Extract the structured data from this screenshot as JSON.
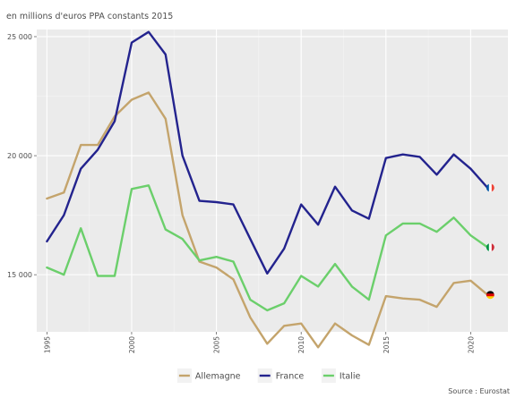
{
  "chart_data": {
    "type": "line",
    "subtitle": "en millions d'euros PPA constants 2015",
    "caption": "Source : Eurostat",
    "x": [
      1995,
      1996,
      1997,
      1998,
      1999,
      2000,
      2001,
      2002,
      2003,
      2004,
      2005,
      2006,
      2007,
      2008,
      2009,
      2010,
      2011,
      2012,
      2013,
      2014,
      2015,
      2016,
      2017,
      2018,
      2019,
      2020,
      2021
    ],
    "xlim": [
      1994.4,
      2022.2
    ],
    "ylim": [
      12600,
      25300
    ],
    "x_ticks": [
      1995,
      2000,
      2005,
      2010,
      2015,
      2020
    ],
    "y_ticks": [
      15000,
      20000,
      25000
    ],
    "y_tick_labels": [
      "15 000",
      "20 000",
      "25 000"
    ],
    "grid": true,
    "legend_position": "bottom",
    "series": [
      {
        "name": "Allemagne",
        "color": "#c4a46c",
        "flag_colors": [
          "#000000",
          "#dd0000",
          "#ffce00"
        ],
        "values": [
          18200,
          18450,
          20450,
          20450,
          21650,
          22350,
          22650,
          21550,
          17500,
          15550,
          15300,
          14800,
          13200,
          12100,
          12850,
          12950,
          11950,
          12950,
          12450,
          12050,
          14100,
          14000,
          13950,
          13650,
          14650,
          14750,
          14150
        ]
      },
      {
        "name": "France",
        "color": "#23238e",
        "flag_colors": [
          "#0055a4",
          "#ffffff",
          "#ef4135"
        ],
        "values": [
          16400,
          17500,
          19450,
          20250,
          21450,
          24750,
          25200,
          24250,
          20000,
          18100,
          18050,
          17950,
          16500,
          15050,
          16100,
          17950,
          17100,
          18700,
          17700,
          17350,
          19900,
          20050,
          19950,
          19200,
          20050,
          19450,
          18650
        ]
      },
      {
        "name": "Italie",
        "color": "#6bcf6b",
        "flag_colors": [
          "#009246",
          "#ffffff",
          "#ce2b37"
        ],
        "values": [
          15300,
          15000,
          16950,
          14950,
          14950,
          18600,
          18750,
          16900,
          16500,
          15600,
          15750,
          15550,
          13950,
          13500,
          13800,
          14950,
          14500,
          15450,
          14500,
          13950,
          16650,
          17150,
          17150,
          16800,
          17400,
          16650,
          16150
        ]
      }
    ]
  }
}
